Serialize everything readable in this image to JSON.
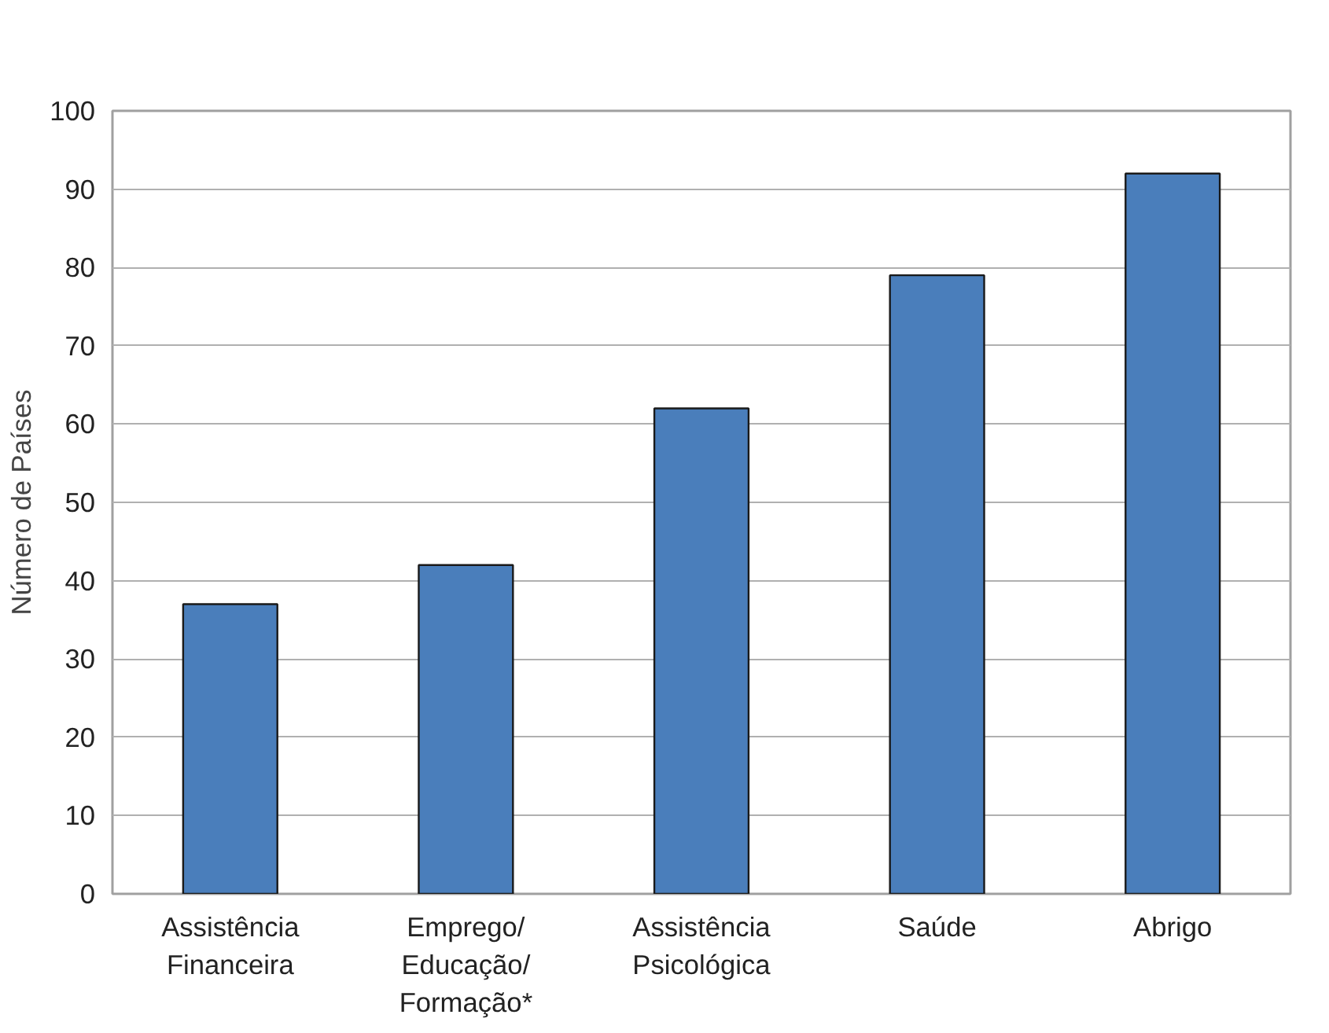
{
  "chart_data": {
    "type": "bar",
    "ylabel": "Número de Países",
    "categories": [
      "Assistência\nFinanceira",
      "Emprego/\nEducação/\nFormação*",
      "Assistência\nPsicológica",
      "Saúde",
      "Abrigo"
    ],
    "values": [
      37,
      42,
      62,
      79,
      92
    ],
    "color": "#4a7ebb",
    "ylim": [
      0,
      100
    ],
    "yticks": [
      0,
      10,
      20,
      30,
      40,
      50,
      60,
      70,
      80,
      90,
      100
    ],
    "grid": "y"
  }
}
